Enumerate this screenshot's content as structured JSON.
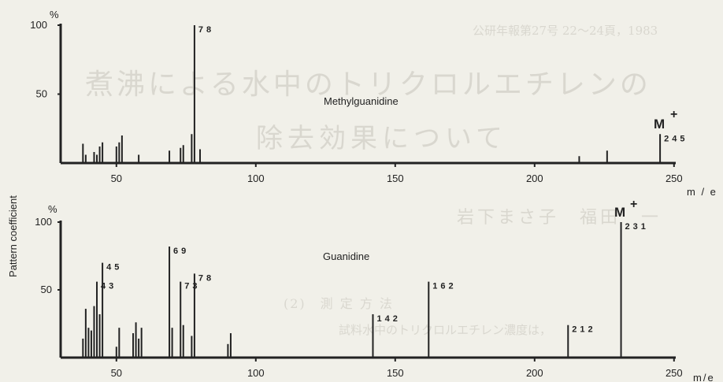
{
  "background_text": {
    "line1": "公研年報第27号 22～24頁，1983",
    "line2": "煮沸による水中のトリクロルエチレンの",
    "line3": "除去効果について",
    "line4": "岩下まさ子　福田　一",
    "line5": "(2)　測 定 方 法",
    "line6": "試料水中のトリクロルエチレン濃度は，",
    "colors": {
      "ghost_text": "#d9d7cf",
      "ink": "#222222",
      "paper": "#f1f0e9"
    }
  },
  "chart_data": {
    "type": "bar",
    "ylabel": "Pattern coefficient",
    "charts": [
      {
        "title": "Methylguanidine",
        "xlabel": "m / e",
        "xlim": [
          30,
          260
        ],
        "ylim": [
          0,
          100
        ],
        "y_unit": "%",
        "y_ticks": [
          {
            "value": 100,
            "label": "100"
          },
          {
            "value": 50,
            "label": "50"
          }
        ],
        "x_ticks": [
          {
            "value": 50,
            "label": "50"
          },
          {
            "value": 100,
            "label": "100"
          },
          {
            "value": 150,
            "label": "150"
          },
          {
            "value": 200,
            "label": "200"
          },
          {
            "value": 250,
            "label": "250"
          }
        ],
        "peaks": [
          {
            "mz": 38,
            "value": 14
          },
          {
            "mz": 39,
            "value": 6
          },
          {
            "mz": 42,
            "value": 8
          },
          {
            "mz": 43,
            "value": 6
          },
          {
            "mz": 44,
            "value": 12
          },
          {
            "mz": 45,
            "value": 15
          },
          {
            "mz": 50,
            "value": 12
          },
          {
            "mz": 51,
            "value": 15
          },
          {
            "mz": 52,
            "value": 20
          },
          {
            "mz": 58,
            "value": 6
          },
          {
            "mz": 69,
            "value": 9
          },
          {
            "mz": 73,
            "value": 11
          },
          {
            "mz": 74,
            "value": 13
          },
          {
            "mz": 77,
            "value": 21
          },
          {
            "mz": 78,
            "value": 100
          },
          {
            "mz": 80,
            "value": 10
          },
          {
            "mz": 216,
            "value": 5
          },
          {
            "mz": 226,
            "value": 9
          },
          {
            "mz": 245,
            "value": 21
          }
        ],
        "peak_labels": [
          {
            "mz": 78,
            "text": "78"
          },
          {
            "mz": 245,
            "text": "245"
          }
        ],
        "molecular_ion": {
          "mz": 245,
          "text": "M+"
        }
      },
      {
        "title": "Guanidine",
        "xlabel": "m/e",
        "xlim": [
          30,
          260
        ],
        "ylim": [
          0,
          100
        ],
        "y_unit": "%",
        "y_ticks": [
          {
            "value": 100,
            "label": "100"
          },
          {
            "value": 50,
            "label": "50"
          }
        ],
        "x_ticks": [
          {
            "value": 50,
            "label": "50"
          },
          {
            "value": 100,
            "label": "100"
          },
          {
            "value": 150,
            "label": "150"
          },
          {
            "value": 200,
            "label": "200"
          },
          {
            "value": 250,
            "label": "250"
          }
        ],
        "peaks": [
          {
            "mz": 38,
            "value": 14
          },
          {
            "mz": 39,
            "value": 36
          },
          {
            "mz": 40,
            "value": 22
          },
          {
            "mz": 41,
            "value": 20
          },
          {
            "mz": 42,
            "value": 38
          },
          {
            "mz": 43,
            "value": 56
          },
          {
            "mz": 44,
            "value": 32
          },
          {
            "mz": 45,
            "value": 70
          },
          {
            "mz": 50,
            "value": 8
          },
          {
            "mz": 51,
            "value": 22
          },
          {
            "mz": 56,
            "value": 18
          },
          {
            "mz": 57,
            "value": 26
          },
          {
            "mz": 58,
            "value": 14
          },
          {
            "mz": 59,
            "value": 22
          },
          {
            "mz": 69,
            "value": 82
          },
          {
            "mz": 70,
            "value": 22
          },
          {
            "mz": 73,
            "value": 56
          },
          {
            "mz": 74,
            "value": 24
          },
          {
            "mz": 77,
            "value": 16
          },
          {
            "mz": 78,
            "value": 62
          },
          {
            "mz": 90,
            "value": 10
          },
          {
            "mz": 91,
            "value": 18
          },
          {
            "mz": 142,
            "value": 32
          },
          {
            "mz": 162,
            "value": 56
          },
          {
            "mz": 212,
            "value": 24
          },
          {
            "mz": 231,
            "value": 100
          }
        ],
        "peak_labels": [
          {
            "mz": 43,
            "text": "43"
          },
          {
            "mz": 45,
            "text": "45"
          },
          {
            "mz": 69,
            "text": "69"
          },
          {
            "mz": 73,
            "text": "73"
          },
          {
            "mz": 78,
            "text": "78"
          },
          {
            "mz": 142,
            "text": "142"
          },
          {
            "mz": 162,
            "text": "162"
          },
          {
            "mz": 212,
            "text": "212"
          },
          {
            "mz": 231,
            "text": "231"
          }
        ],
        "molecular_ion": {
          "mz": 231,
          "text": "M+"
        }
      }
    ]
  }
}
